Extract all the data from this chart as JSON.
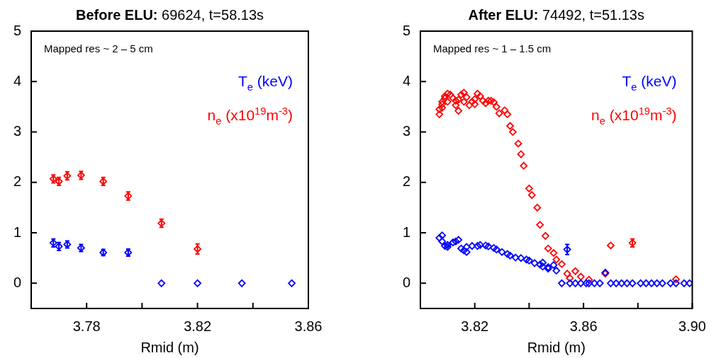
{
  "chart_data": [
    {
      "type": "scatter",
      "title": "Before ELU: 69624, t=58.13s",
      "xlabel": "Rmid (m)",
      "annotations": [
        "Mapped res ~ 2 – 5 cm"
      ],
      "marker": "diamond",
      "legend": "top right",
      "xlim": [
        3.76,
        3.86
      ],
      "ylim": [
        -0.5,
        5
      ],
      "xticks": [
        3.78,
        {
          "value": 3.8,
          "label": null
        },
        3.82,
        {
          "value": 3.84,
          "label": null
        },
        3.86
      ],
      "yticks": [
        0,
        1,
        2,
        3,
        4,
        5
      ],
      "series": [
        {
          "name": "T$_{e}$ (keV)",
          "color": "#0000ff",
          "x": [
            3.768,
            3.77,
            3.773,
            3.778,
            3.786,
            3.795,
            3.807,
            3.82,
            3.836,
            3.854
          ],
          "values": [
            0.8,
            0.73,
            0.77,
            0.7,
            0.61,
            0.61,
            0,
            0,
            0,
            0
          ],
          "errors": [
            0.08,
            0.08,
            0.07,
            0.07,
            0.06,
            0.07,
            null,
            null,
            null,
            null
          ]
        },
        {
          "name": "n$_{e}$ (x10$^{19}$m$^{-3}$)",
          "color": "#ff0000",
          "x": [
            3.768,
            3.77,
            3.773,
            3.778,
            3.786,
            3.795,
            3.807,
            3.82
          ],
          "values": [
            2.07,
            2.02,
            2.13,
            2.14,
            2.02,
            1.73,
            1.19,
            0.68
          ],
          "errors": [
            0.08,
            0.08,
            0.08,
            0.08,
            0.08,
            0.08,
            0.08,
            0.1
          ]
        }
      ]
    },
    {
      "type": "scatter",
      "title": "After ELU: 74492, t=51.13s",
      "xlabel": "Rmid (m)",
      "annotations": [
        "Mapped res ~ 1 – 1.5 cm"
      ],
      "marker": "diamond",
      "legend": "top right",
      "xlim": [
        3.8,
        3.9
      ],
      "ylim": [
        -0.5,
        5
      ],
      "xticks": [
        3.82,
        {
          "value": 3.84,
          "label": null
        },
        3.86,
        {
          "value": 3.88,
          "label": null
        },
        {
          "value": 3.9,
          "label": "3.90"
        }
      ],
      "yticks": [
        0,
        1,
        2,
        3,
        4,
        5
      ],
      "series": [
        {
          "name": "T$_{e}$ (keV)",
          "color": "#0000ff",
          "x": [
            3.807,
            3.808,
            3.808,
            3.809,
            3.81,
            3.81,
            3.812,
            3.813,
            3.814,
            3.815,
            3.816,
            3.817,
            3.817,
            3.819,
            3.821,
            3.822,
            3.824,
            3.825,
            3.827,
            3.828,
            3.83,
            3.832,
            3.833,
            3.835,
            3.837,
            3.839,
            3.84,
            3.842,
            3.844,
            3.845,
            3.845,
            3.847,
            3.847,
            3.849,
            3.85,
            3.852,
            3.854,
            3.855,
            3.857,
            3.859,
            3.861,
            3.862,
            3.864,
            3.866,
            3.868,
            3.87,
            3.872,
            3.874,
            3.876,
            3.878,
            3.881,
            3.883,
            3.885,
            3.887,
            3.889,
            3.892,
            3.894,
            3.897,
            3.899
          ],
          "values": [
            0.9,
            0.95,
            0.83,
            0.74,
            0.72,
            0.76,
            0.81,
            0.83,
            0.86,
            0.69,
            0.65,
            0.62,
            0.72,
            0.74,
            0.74,
            0.76,
            0.75,
            0.73,
            0.7,
            0.67,
            0.62,
            0.58,
            0.55,
            0.51,
            0.5,
            0.47,
            0.45,
            0.4,
            0.37,
            0.41,
            0.33,
            0.29,
            0.32,
            0.36,
            0.25,
            0,
            0.67,
            0,
            0,
            0,
            0,
            0,
            0,
            0,
            0.21,
            0,
            0,
            0,
            0,
            0,
            0,
            0,
            0,
            0,
            0,
            0,
            0,
            0,
            0
          ],
          "errors": [
            null,
            null,
            null,
            null,
            null,
            null,
            null,
            null,
            null,
            null,
            null,
            null,
            null,
            null,
            null,
            null,
            null,
            null,
            null,
            null,
            null,
            null,
            null,
            null,
            null,
            null,
            null,
            null,
            null,
            null,
            null,
            null,
            null,
            null,
            null,
            null,
            0.1,
            null,
            null,
            null,
            null,
            null,
            null,
            null,
            null,
            null,
            null,
            null,
            null,
            null,
            null,
            null,
            null,
            null,
            null,
            null,
            null,
            null,
            null
          ]
        },
        {
          "name": "n$_{e}$ (x10$^{19}$m$^{-3}$)",
          "color": "#ff0000",
          "x": [
            3.807,
            3.807,
            3.808,
            3.808,
            3.808,
            3.809,
            3.809,
            3.81,
            3.81,
            3.811,
            3.812,
            3.813,
            3.813,
            3.814,
            3.814,
            3.815,
            3.816,
            3.816,
            3.817,
            3.818,
            3.819,
            3.82,
            3.82,
            3.821,
            3.822,
            3.823,
            3.824,
            3.825,
            3.826,
            3.827,
            3.828,
            3.829,
            3.831,
            3.832,
            3.833,
            3.834,
            3.836,
            3.837,
            3.838,
            3.84,
            3.841,
            3.843,
            3.844,
            3.846,
            3.847,
            3.849,
            3.85,
            3.852,
            3.854,
            3.855,
            3.857,
            3.859,
            3.862,
            3.868,
            3.87,
            3.878,
            3.894
          ],
          "values": [
            3.35,
            3.45,
            3.55,
            3.48,
            3.6,
            3.67,
            3.71,
            3.76,
            3.6,
            3.74,
            3.67,
            3.62,
            3.53,
            3.42,
            3.64,
            3.74,
            3.6,
            3.78,
            3.69,
            3.53,
            3.6,
            3.55,
            3.65,
            3.76,
            3.71,
            3.62,
            3.57,
            3.62,
            3.62,
            3.59,
            3.5,
            3.37,
            3.43,
            3.35,
            3.12,
            3.0,
            2.77,
            2.56,
            2.33,
            1.88,
            1.75,
            1.5,
            1.16,
            0.94,
            0.69,
            0.6,
            0.47,
            0.38,
            0.19,
            0.1,
            0.24,
            0.13,
            0.07,
            0.19,
            0.75,
            0.8,
            0.08
          ],
          "errors": [
            null,
            null,
            null,
            null,
            null,
            null,
            null,
            null,
            null,
            null,
            null,
            null,
            null,
            null,
            null,
            null,
            null,
            null,
            null,
            null,
            null,
            null,
            null,
            null,
            null,
            null,
            null,
            null,
            null,
            null,
            null,
            null,
            null,
            null,
            null,
            null,
            null,
            null,
            null,
            null,
            null,
            null,
            null,
            null,
            null,
            null,
            null,
            null,
            null,
            null,
            null,
            null,
            null,
            null,
            null,
            0.08,
            null
          ]
        }
      ]
    }
  ]
}
